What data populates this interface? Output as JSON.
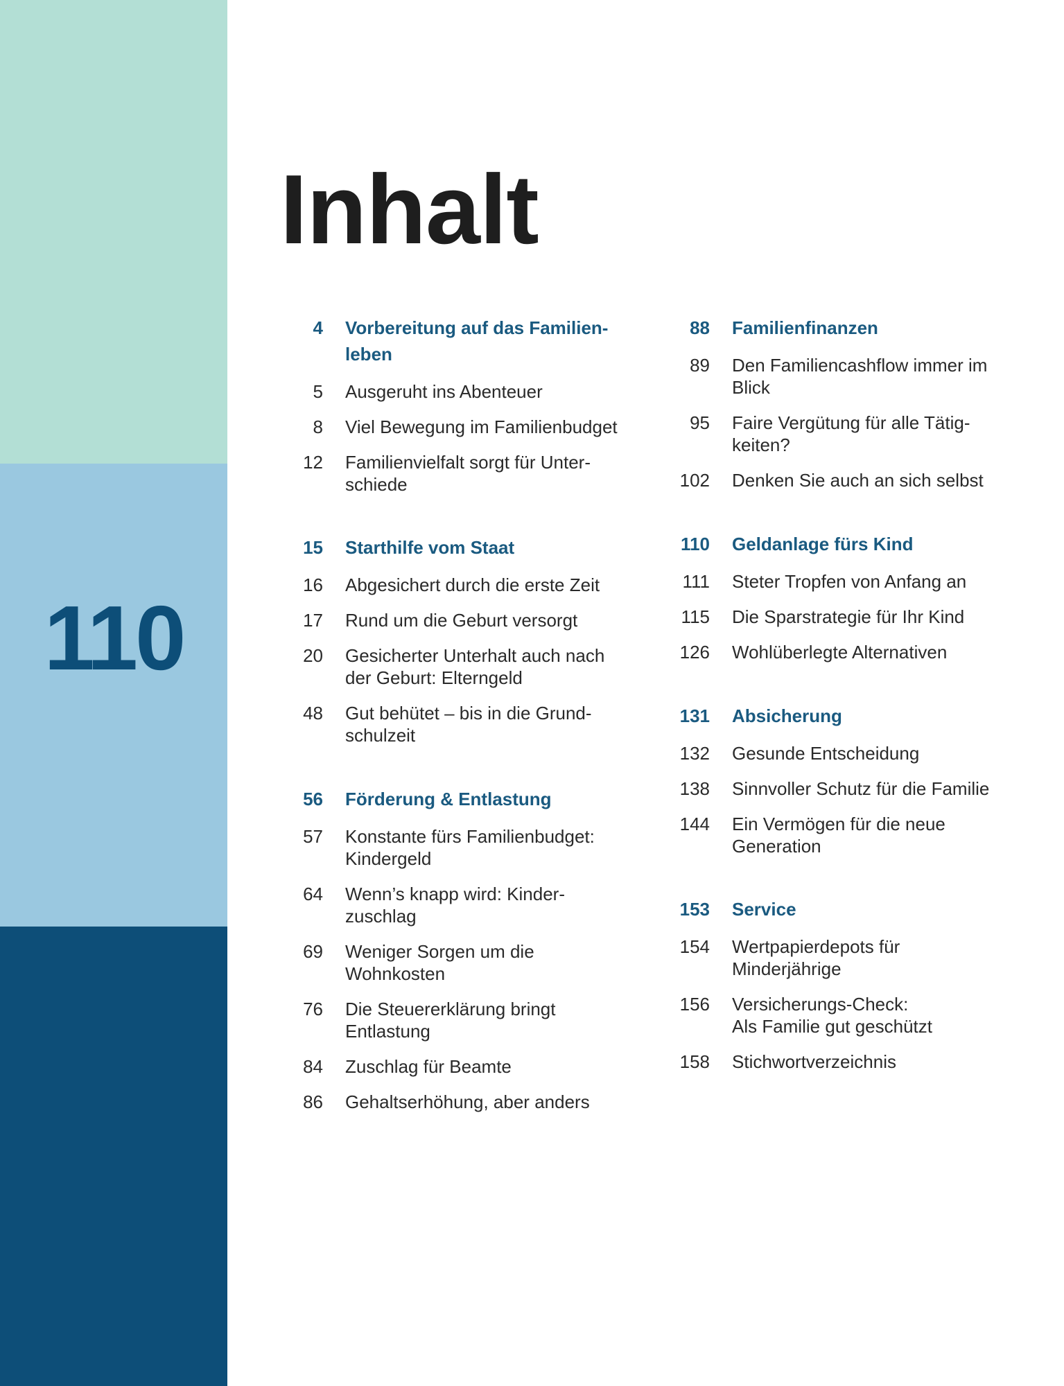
{
  "side_number": "110",
  "title": "Inhalt",
  "columns": [
    {
      "sections": [
        {
          "page": "4",
          "title": "Vorbereitung auf das Familien-\nleben",
          "entries": [
            {
              "page": "5",
              "title": "Ausgeruht ins Abenteuer"
            },
            {
              "page": "8",
              "title": "Viel Bewegung im Familienbudget"
            },
            {
              "page": "12",
              "title": "Familienvielfalt sorgt für Unter-\nschiede"
            }
          ]
        },
        {
          "page": "15",
          "title": "Starthilfe vom Staat",
          "entries": [
            {
              "page": "16",
              "title": "Abgesichert durch die erste Zeit"
            },
            {
              "page": "17",
              "title": "Rund um die Geburt versorgt"
            },
            {
              "page": "20",
              "title": "Gesicherter Unterhalt auch nach\nder Geburt: Elterngeld"
            },
            {
              "page": "48",
              "title": "Gut behütet – bis in die Grund-\nschulzeit"
            }
          ]
        },
        {
          "page": "56",
          "title": "Förderung & Entlastung",
          "entries": [
            {
              "page": "57",
              "title": "Konstante fürs Familienbudget:\nKindergeld"
            },
            {
              "page": "64",
              "title": "Wenn’s knapp wird: Kinder-\nzuschlag"
            },
            {
              "page": "69",
              "title": "Weniger Sorgen um die\nWohnkosten"
            },
            {
              "page": "76",
              "title": "Die Steuererklärung bringt\nEntlastung"
            },
            {
              "page": "84",
              "title": "Zuschlag für Beamte"
            },
            {
              "page": "86",
              "title": "Gehaltserhöhung, aber anders"
            }
          ]
        }
      ]
    },
    {
      "sections": [
        {
          "page": "88",
          "title": "Familienfinanzen",
          "entries": [
            {
              "page": "89",
              "title": "Den Familiencashflow immer im\nBlick"
            },
            {
              "page": "95",
              "title": "Faire Vergütung für alle Tätig-\nkeiten?"
            },
            {
              "page": "102",
              "title": "Denken Sie auch an sich selbst"
            }
          ]
        },
        {
          "page": "110",
          "title": "Geldanlage fürs Kind",
          "entries": [
            {
              "page": "111",
              "title": "Steter Tropfen von Anfang an"
            },
            {
              "page": "115",
              "title": "Die Sparstrategie für Ihr Kind"
            },
            {
              "page": "126",
              "title": "Wohlüberlegte Alternativen"
            }
          ]
        },
        {
          "page": "131",
          "title": "Absicherung",
          "entries": [
            {
              "page": "132",
              "title": "Gesunde Entscheidung"
            },
            {
              "page": "138",
              "title": "Sinnvoller Schutz für die Familie"
            },
            {
              "page": "144",
              "title": "Ein Vermögen für die neue\nGeneration"
            }
          ]
        },
        {
          "page": "153",
          "title": "Service",
          "entries": [
            {
              "page": "154",
              "title": "Wertpapierdepots für\nMinderjährige"
            },
            {
              "page": "156",
              "title": "Versicherungs-Check:\nAls Familie gut geschützt"
            },
            {
              "page": "158",
              "title": "Stichwortverzeichnis"
            }
          ]
        }
      ]
    }
  ]
}
